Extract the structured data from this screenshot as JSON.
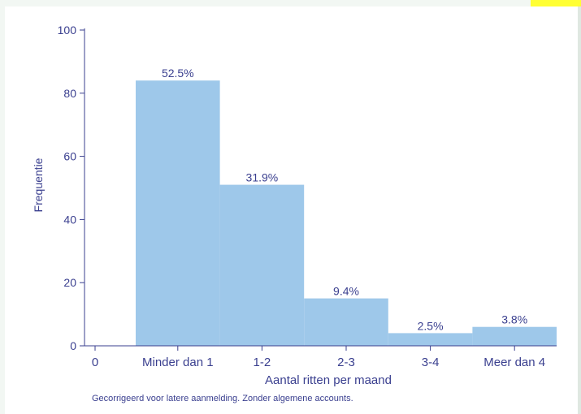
{
  "chart_data": {
    "type": "bar",
    "categories": [
      "0",
      "Minder dan 1",
      "1-2",
      "2-3",
      "3-4",
      "Meer dan 4"
    ],
    "values": [
      0,
      84,
      51,
      15,
      4,
      6
    ],
    "data_labels": [
      "",
      "52.5%",
      "31.9%",
      "9.4%",
      "2.5%",
      "3.8%"
    ],
    "title": "",
    "xlabel": "Aantal ritten per maand",
    "ylabel": "Frequentie",
    "ylim": [
      0,
      100
    ],
    "yticks": [
      "0",
      "20",
      "40",
      "60",
      "80",
      "100"
    ],
    "grid": false,
    "bar_color": "#9ec8ea",
    "axis_color": "#3a3f8f"
  },
  "caption": "Gecorrigeerd voor latere aanmelding. Zonder algemene accounts."
}
